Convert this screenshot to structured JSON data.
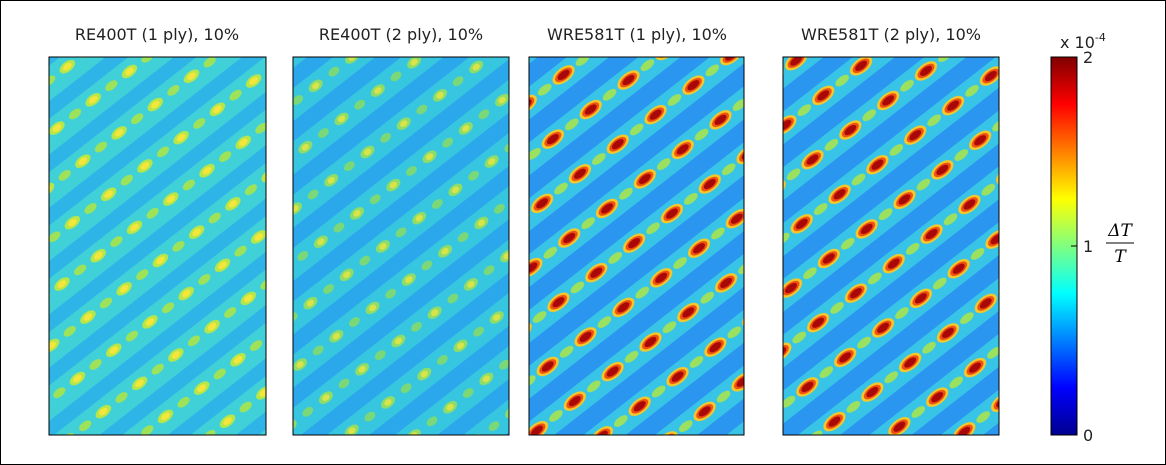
{
  "panels": [
    {
      "title": "RE400T (1 ply), 10%"
    },
    {
      "title": "RE400T (2 ply), 10%"
    },
    {
      "title": "WRE581T (1 ply), 10%"
    },
    {
      "title": "WRE581T (2 ply), 10%"
    }
  ],
  "colorbar": {
    "lim": [
      0,
      2
    ],
    "ticks": [
      0,
      1,
      2
    ],
    "multiplier": "x 10",
    "exponent": "-4",
    "label_numerator": "ΔT",
    "label_denominator": "T"
  }
}
